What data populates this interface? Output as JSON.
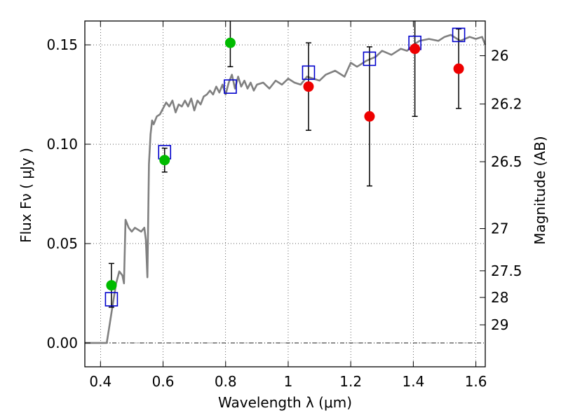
{
  "chart_data": {
    "type": "scatter",
    "xlabel": "Wavelength  λ (μm)",
    "ylabel": "Flux  Fν  ( μJy )",
    "y2label": "Magnitude (AB)",
    "xlim": [
      0.35,
      1.63
    ],
    "ylim": [
      -0.012,
      0.162
    ],
    "grid": true,
    "x_ticks": [
      0.4,
      0.6,
      0.8,
      1.0,
      1.2,
      1.4,
      1.6
    ],
    "x_tick_labels": [
      "0.4",
      "0.6",
      "0.8",
      "1",
      "1.2",
      "1.4",
      "1.6"
    ],
    "y_ticks": [
      0.0,
      0.05,
      0.1,
      0.15
    ],
    "y_tick_labels": [
      "0.00",
      "0.05",
      "0.10",
      "0.15"
    ],
    "mag_ticks": [
      26,
      26.2,
      26.5,
      27,
      27.5,
      28,
      29
    ],
    "mag_tick_labels": [
      "26",
      "26.2",
      "26.5",
      "27",
      "27.5",
      "28",
      "29"
    ],
    "colors": {
      "spectrum": "#808080",
      "model": "#0000cc",
      "detection": "#00bb00",
      "nondetection": "#ee0000",
      "errorbar": "#000000"
    },
    "series": [
      {
        "type": "line",
        "x": [
          0.35,
          0.41,
          0.42,
          0.43,
          0.44,
          0.45,
          0.46,
          0.47,
          0.475,
          0.48,
          0.49,
          0.5,
          0.51,
          0.52,
          0.53,
          0.54,
          0.545,
          0.55,
          0.555,
          0.56,
          0.565,
          0.57,
          0.58,
          0.59,
          0.6,
          0.61,
          0.62,
          0.63,
          0.64,
          0.65,
          0.66,
          0.67,
          0.68,
          0.69,
          0.7,
          0.71,
          0.72,
          0.73,
          0.74,
          0.75,
          0.76,
          0.77,
          0.78,
          0.79,
          0.8,
          0.81,
          0.82,
          0.83,
          0.84,
          0.85,
          0.86,
          0.87,
          0.88,
          0.89,
          0.9,
          0.92,
          0.94,
          0.96,
          0.98,
          1.0,
          1.02,
          1.04,
          1.06,
          1.08,
          1.1,
          1.12,
          1.15,
          1.18,
          1.2,
          1.22,
          1.25,
          1.28,
          1.3,
          1.33,
          1.36,
          1.38,
          1.4,
          1.42,
          1.45,
          1.48,
          1.5,
          1.52,
          1.55,
          1.58,
          1.6,
          1.62,
          1.63
        ],
        "y": [
          0.0,
          0.0,
          0.0,
          0.01,
          0.02,
          0.03,
          0.036,
          0.034,
          0.03,
          0.062,
          0.058,
          0.056,
          0.058,
          0.057,
          0.056,
          0.058,
          0.052,
          0.033,
          0.09,
          0.105,
          0.112,
          0.11,
          0.114,
          0.115,
          0.118,
          0.121,
          0.119,
          0.122,
          0.116,
          0.12,
          0.119,
          0.122,
          0.119,
          0.123,
          0.117,
          0.122,
          0.12,
          0.124,
          0.125,
          0.127,
          0.125,
          0.129,
          0.126,
          0.13,
          0.125,
          0.131,
          0.135,
          0.128,
          0.134,
          0.129,
          0.132,
          0.128,
          0.131,
          0.127,
          0.13,
          0.131,
          0.128,
          0.132,
          0.13,
          0.133,
          0.131,
          0.13,
          0.134,
          0.133,
          0.132,
          0.135,
          0.137,
          0.134,
          0.141,
          0.139,
          0.142,
          0.144,
          0.147,
          0.145,
          0.148,
          0.147,
          0.15,
          0.152,
          0.153,
          0.152,
          0.154,
          0.155,
          0.152,
          0.154,
          0.153,
          0.154,
          0.15
        ]
      },
      {
        "type": "squares",
        "x": [
          0.435,
          0.605,
          0.815,
          1.065,
          1.26,
          1.405,
          1.545
        ],
        "y": [
          0.022,
          0.096,
          0.129,
          0.136,
          0.143,
          0.151,
          0.155
        ]
      },
      {
        "type": "points",
        "x": [
          0.435,
          0.605,
          0.815
        ],
        "y": [
          0.029,
          0.092,
          0.151
        ],
        "yerr": [
          0.011,
          0.006,
          0.012
        ]
      },
      {
        "type": "points",
        "x": [
          1.065,
          1.26,
          1.405,
          1.545
        ],
        "y": [
          0.129,
          0.114,
          0.148,
          0.138
        ],
        "yerr": [
          0.022,
          0.035,
          0.034,
          0.02
        ]
      }
    ]
  }
}
